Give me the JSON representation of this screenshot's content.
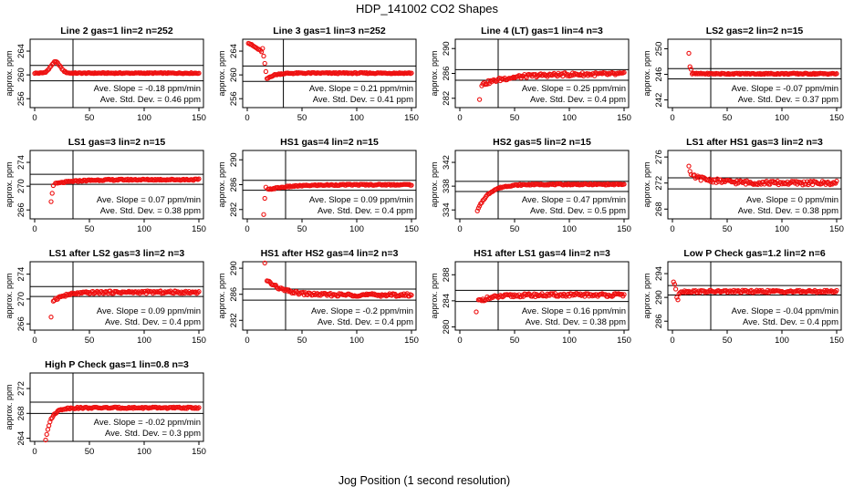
{
  "figure": {
    "title": "HDP_141002  CO2 Shapes",
    "xlabel": "Jog Position (1 second resolution)"
  },
  "colors": {
    "points": "#ee1111",
    "axes": "#000000",
    "background": "#ffffff"
  },
  "chart_data": [
    {
      "type": "scatter",
      "title": "Line 2 gas=1 lin=2 n=252",
      "ylabel": "approx. ppm",
      "xlim": [
        0,
        150
      ],
      "xticks": [
        0,
        50,
        100,
        150
      ],
      "ylim": [
        254.5,
        266
      ],
      "yticks": [
        256,
        260,
        264
      ],
      "vline": 35,
      "hlines": [
        261.6,
        259.0
      ],
      "slope_text": "Ave. Slope = -0.18 ppm/min",
      "sd_text": "Ave. Std. Dev. = 0.46 ppm",
      "x_start": 0,
      "x_end": 150,
      "baseline": 260.3,
      "noise": 0.08,
      "shape": {
        "kind": "bump",
        "peak": 262.2,
        "at": 19,
        "width": 6
      },
      "outliers": []
    },
    {
      "type": "scatter",
      "title": "Line 3 gas=1 lin=3 n=252",
      "ylabel": "approx. ppm",
      "xlim": [
        0,
        150
      ],
      "xticks": [
        0,
        50,
        100,
        150
      ],
      "ylim": [
        254.5,
        266
      ],
      "yticks": [
        256,
        260,
        264
      ],
      "vline": 33,
      "hlines": [
        261.5,
        258.9
      ],
      "slope_text": "Ave. Slope = 0.21 ppm/min",
      "sd_text": "Ave. Std. Dev. = 0.41 ppm",
      "x_start": 1,
      "x_end": 150,
      "baseline": 260.3,
      "noise": 0.1,
      "shape": {
        "kind": "early-high",
        "top": 265.4,
        "until": 18,
        "low": 259.3
      },
      "outliers": []
    },
    {
      "type": "scatter",
      "title": "Line 4 (LT) gas=1 lin=4 n=3",
      "ylabel": "approx. ppm",
      "xlim": [
        0,
        150
      ],
      "xticks": [
        0,
        50,
        100,
        150
      ],
      "ylim": [
        280.5,
        291.5
      ],
      "yticks": [
        282,
        286,
        290
      ],
      "vline": 35,
      "hlines": [
        286.6,
        284.9
      ],
      "slope_text": "Ave. Slope = 0.25 ppm/min",
      "sd_text": "Ave. Std. Dev. = 0.4 ppm",
      "x_start": 20,
      "x_end": 150,
      "baseline": 285.9,
      "noise": 0.28,
      "shape": {
        "kind": "rise",
        "from": 284.2,
        "tau": 25
      },
      "outliers": [
        [
          18,
          281.8
        ]
      ]
    },
    {
      "type": "scatter",
      "title": "LS2 gas=2 lin=2 n=15",
      "ylabel": "approx. ppm",
      "xlim": [
        0,
        150
      ],
      "xticks": [
        0,
        50,
        100,
        150
      ],
      "ylim": [
        240.8,
        251.5
      ],
      "yticks": [
        242,
        246,
        250
      ],
      "vline": 35,
      "hlines": [
        246.9,
        245.3
      ],
      "slope_text": "Ave. Slope = -0.07 ppm/min",
      "sd_text": "Ave. Std. Dev. = 0.37 ppm",
      "x_start": 18,
      "x_end": 150,
      "baseline": 246.1,
      "noise": 0.1,
      "shape": {
        "kind": "flat"
      },
      "outliers": [
        [
          15,
          249.3
        ],
        [
          16,
          247.2
        ],
        [
          17,
          246.8
        ]
      ]
    },
    {
      "type": "scatter",
      "title": "LS1 gas=3 lin=2 n=15",
      "ylabel": "approx. ppm",
      "xlim": [
        0,
        150
      ],
      "xticks": [
        0,
        50,
        100,
        150
      ],
      "ylim": [
        264.5,
        276
      ],
      "yticks": [
        266,
        270,
        274
      ],
      "vline": 35,
      "hlines": [
        272.0,
        270.3
      ],
      "slope_text": "Ave. Slope = 0.07 ppm/min",
      "sd_text": "Ave. Std. Dev. = 0.38 ppm",
      "x_start": 19,
      "x_end": 150,
      "baseline": 271.1,
      "noise": 0.12,
      "shape": {
        "kind": "rise",
        "from": 270.4,
        "tau": 18
      },
      "outliers": [
        [
          15,
          267.4
        ],
        [
          16,
          268.8
        ],
        [
          17,
          270.1
        ]
      ]
    },
    {
      "type": "scatter",
      "title": "HS1 gas=4 lin=2 n=15",
      "ylabel": "approx. ppm",
      "xlim": [
        0,
        150
      ],
      "xticks": [
        0,
        50,
        100,
        150
      ],
      "ylim": [
        280.5,
        291.5
      ],
      "yticks": [
        282,
        286,
        290
      ],
      "vline": 35,
      "hlines": [
        286.7,
        285.1
      ],
      "slope_text": "Ave. Slope = 0.09 ppm/min",
      "sd_text": "Ave. Std. Dev. = 0.4 ppm",
      "x_start": 19,
      "x_end": 150,
      "baseline": 286.0,
      "noise": 0.1,
      "shape": {
        "kind": "rise",
        "from": 285.2,
        "tau": 20
      },
      "outliers": [
        [
          15,
          281.2
        ],
        [
          16,
          283.8
        ],
        [
          17,
          285.6
        ]
      ]
    },
    {
      "type": "scatter",
      "title": "HS2 gas=5 lin=2 n=15",
      "ylabel": "approx. ppm",
      "xlim": [
        0,
        150
      ],
      "xticks": [
        0,
        50,
        100,
        150
      ],
      "ylim": [
        332.5,
        344
      ],
      "yticks": [
        334,
        338,
        342
      ],
      "vline": 35,
      "hlines": [
        338.8,
        337.1
      ],
      "slope_text": "Ave. Slope = 0.47 ppm/min",
      "sd_text": "Ave. Std. Dev. = 0.5 ppm",
      "x_start": 16,
      "x_end": 150,
      "baseline": 338.3,
      "noise": 0.1,
      "shape": {
        "kind": "rise",
        "from": 333.8,
        "tau": 10
      },
      "outliers": []
    },
    {
      "type": "scatter",
      "title": "LS1 after HS1 gas=3 lin=2 n=3",
      "ylabel": "approx. ppm",
      "xlim": [
        0,
        150
      ],
      "xticks": [
        0,
        50,
        100,
        150
      ],
      "ylim": [
        266.5,
        277
      ],
      "yticks": [
        268,
        272,
        276
      ],
      "vline": 35,
      "hlines": [
        272.8,
        271.1
      ],
      "slope_text": "Ave. Slope = 0 ppm/min",
      "sd_text": "Ave. Std. Dev. = 0.38 ppm",
      "x_start": 19,
      "x_end": 150,
      "baseline": 272.0,
      "noise": 0.3,
      "shape": {
        "kind": "decay",
        "from": 273.0,
        "tau": 20
      },
      "outliers": [
        [
          15,
          274.6
        ],
        [
          16,
          273.8
        ],
        [
          17,
          273.3
        ]
      ]
    },
    {
      "type": "scatter",
      "title": "LS1 after LS2 gas=3 lin=2 n=3",
      "ylabel": "approx. ppm",
      "xlim": [
        0,
        150
      ],
      "xticks": [
        0,
        50,
        100,
        150
      ],
      "ylim": [
        265,
        276
      ],
      "yticks": [
        266,
        270,
        274
      ],
      "vline": 35,
      "hlines": [
        272.0,
        270.4
      ],
      "slope_text": "Ave. Slope = 0.09 ppm/min",
      "sd_text": "Ave. Std. Dev. = 0.4 ppm",
      "x_start": 17,
      "x_end": 150,
      "baseline": 271.1,
      "noise": 0.2,
      "shape": {
        "kind": "rise",
        "from": 269.8,
        "tau": 12
      },
      "outliers": [
        [
          15,
          267.1
        ]
      ]
    },
    {
      "type": "scatter",
      "title": "HS1 after HS2 gas=4 lin=2 n=3",
      "ylabel": "approx. ppm",
      "xlim": [
        0,
        150
      ],
      "xticks": [
        0,
        50,
        100,
        150
      ],
      "ylim": [
        280.5,
        291
      ],
      "yticks": [
        282,
        286,
        290
      ],
      "vline": 35,
      "hlines": [
        286.8,
        285.1
      ],
      "slope_text": "Ave. Slope = -0.2 ppm/min",
      "sd_text": "Ave. Std. Dev. = 0.4 ppm",
      "x_start": 18,
      "x_end": 150,
      "baseline": 285.9,
      "noise": 0.22,
      "shape": {
        "kind": "decay",
        "from": 288.2,
        "tau": 14
      },
      "outliers": [
        [
          16,
          290.8
        ]
      ]
    },
    {
      "type": "scatter",
      "title": "HS1 after LS1 gas=4 lin=2 n=3",
      "ylabel": "approx. ppm",
      "xlim": [
        0,
        150
      ],
      "xticks": [
        0,
        50,
        100,
        150
      ],
      "ylim": [
        279.5,
        290
      ],
      "yticks": [
        280,
        284,
        288
      ],
      "vline": 35,
      "hlines": [
        285.6,
        283.9
      ],
      "slope_text": "Ave. Slope = 0.16 ppm/min",
      "sd_text": "Ave. Std. Dev. = 0.38 ppm",
      "x_start": 17,
      "x_end": 150,
      "baseline": 284.9,
      "noise": 0.25,
      "shape": {
        "kind": "rise",
        "from": 284.0,
        "tau": 15
      },
      "outliers": [
        [
          15,
          282.3
        ]
      ]
    },
    {
      "type": "scatter",
      "title": "Low P Check gas=1.2 lin=2 n=6",
      "ylabel": "approx. ppm",
      "xlim": [
        0,
        150
      ],
      "xticks": [
        0,
        50,
        100,
        150
      ],
      "ylim": [
        284.5,
        296
      ],
      "yticks": [
        286,
        290,
        294
      ],
      "vline": 35,
      "hlines": [
        292.0,
        290.4
      ],
      "slope_text": "Ave. Slope = -0.04 ppm/min",
      "sd_text": "Ave. Std. Dev. = 0.4 ppm",
      "x_start": 7,
      "x_end": 150,
      "baseline": 291.0,
      "noise": 0.2,
      "shape": {
        "kind": "flat"
      },
      "outliers": [
        [
          1,
          292.6
        ],
        [
          2,
          292.2
        ],
        [
          3,
          291.4
        ],
        [
          4,
          290.0
        ],
        [
          5,
          289.6
        ],
        [
          6,
          290.6
        ]
      ]
    },
    {
      "type": "scatter",
      "title": "High P Check gas=1 lin=0.8 n=3",
      "ylabel": "approx. ppm",
      "xlim": [
        0,
        150
      ],
      "xticks": [
        0,
        50,
        100,
        150
      ],
      "ylim": [
        263.5,
        274.5
      ],
      "yticks": [
        264,
        268,
        272
      ],
      "vline": 35,
      "hlines": [
        269.8,
        268.0
      ],
      "slope_text": "Ave. Slope = -0.02 ppm/min",
      "sd_text": "Ave. Std. Dev. = 0.3 ppm",
      "x_start": 10,
      "x_end": 150,
      "baseline": 268.9,
      "noise": 0.12,
      "shape": {
        "kind": "rise",
        "from": 263.8,
        "tau": 5
      },
      "outliers": []
    }
  ]
}
